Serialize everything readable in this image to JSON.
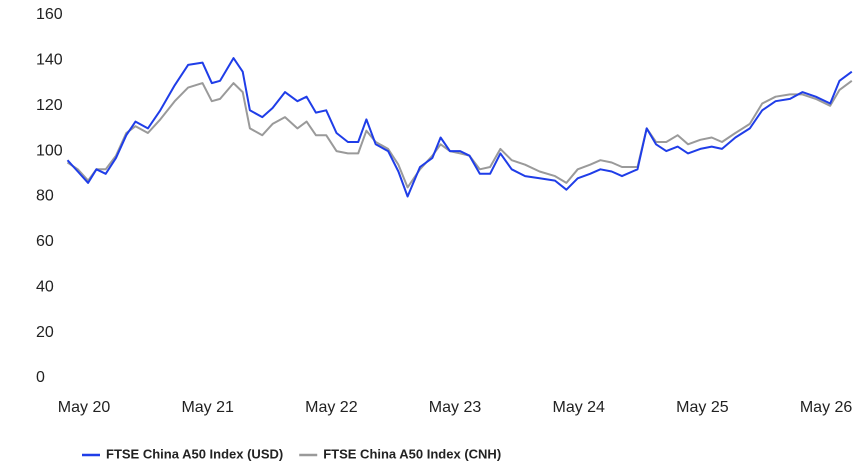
{
  "chart_data": {
    "type": "line",
    "x": [
      -1.6,
      -0.6,
      0.4,
      1.2,
      2.1,
      3.1,
      4.1,
      5.0,
      6.2,
      7.4,
      8.8,
      10.1,
      11.5,
      12.4,
      13.2,
      14.5,
      15.4,
      16.1,
      17.3,
      18.3,
      19.5,
      20.7,
      21.6,
      22.5,
      23.5,
      24.5,
      25.6,
      26.6,
      27.4,
      28.3,
      29.5,
      30.5,
      31.4,
      32.6,
      33.8,
      34.6,
      35.5,
      36.5,
      37.4,
      38.4,
      39.4,
      40.4,
      41.5,
      42.8,
      44.2,
      45.7,
      46.8,
      47.9,
      49.1,
      50.1,
      51.2,
      52.2,
      53.7,
      54.6,
      55.5,
      56.5,
      57.6,
      58.6,
      59.8,
      60.9,
      61.9,
      63.2,
      64.6,
      65.8,
      67.1,
      68.5,
      69.7,
      71.0,
      72.4,
      73.3,
      74.5
    ],
    "series": [
      {
        "name": "FTSE China A50 Index (USD)",
        "color": "#1f3de8",
        "values": [
          96,
          91,
          86,
          92,
          90,
          97,
          107,
          113,
          110,
          118,
          129,
          138,
          139,
          130,
          131,
          141,
          135,
          118,
          115,
          119,
          126,
          122,
          124,
          117,
          118,
          108,
          104,
          104,
          114,
          103,
          100,
          91,
          80,
          93,
          97,
          106,
          100,
          100,
          98,
          90,
          90,
          99,
          92,
          89,
          88,
          87,
          83,
          88,
          90,
          92,
          91,
          89,
          92,
          110,
          103,
          100,
          102,
          99,
          101,
          102,
          101,
          106,
          110,
          118,
          122,
          123,
          126,
          124,
          121,
          131,
          135
        ]
      },
      {
        "name": "FTSE China A50 Index (CNH)",
        "color": "#9a9a9a",
        "values": [
          95,
          92,
          87,
          92,
          92,
          98,
          108,
          111,
          108,
          114,
          122,
          128,
          130,
          122,
          123,
          130,
          126,
          110,
          107,
          112,
          115,
          110,
          113,
          107,
          107,
          100,
          99,
          99,
          109,
          104,
          101,
          94,
          84,
          92,
          98,
          103,
          100,
          99,
          98,
          92,
          93,
          101,
          96,
          94,
          91,
          89,
          86,
          92,
          94,
          96,
          95,
          93,
          93,
          110,
          104,
          104,
          107,
          103,
          105,
          106,
          104,
          108,
          112,
          121,
          124,
          125,
          125,
          123,
          120,
          127,
          131
        ]
      }
    ],
    "xlim": [
      -2,
      75
    ],
    "xticks": [
      {
        "value": 0,
        "label": "May 20"
      },
      {
        "value": 12,
        "label": "May 21"
      },
      {
        "value": 24,
        "label": "May 22"
      },
      {
        "value": 36,
        "label": "May 23"
      },
      {
        "value": 48,
        "label": "May 24"
      },
      {
        "value": 60,
        "label": "May 25"
      },
      {
        "value": 72,
        "label": "May 26"
      }
    ],
    "ylim": [
      0,
      160
    ],
    "yticks": [
      0,
      20,
      40,
      60,
      80,
      100,
      120,
      140,
      160
    ],
    "grid": false,
    "legend": "bottom"
  }
}
